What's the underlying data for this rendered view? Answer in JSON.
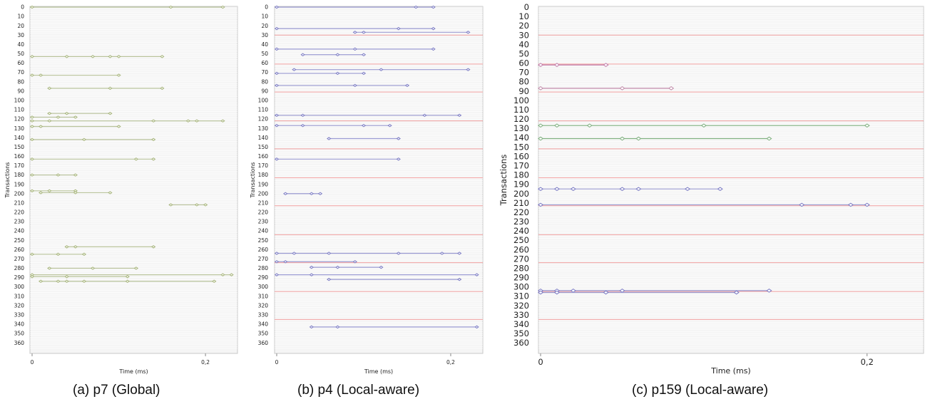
{
  "figure": {
    "captions": [
      {
        "letter": "(a)",
        "name": "p7 (Global)"
      },
      {
        "letter": "(b)",
        "name": "p4 (Local-aware)"
      },
      {
        "letter": "(c)",
        "name": "p159 (Local-aware)"
      }
    ]
  },
  "chart_data": [
    {
      "type": "scatter",
      "subtype": "transaction-timeline",
      "title": "",
      "xlabel": "Time (ms)",
      "ylabel": "Transactions",
      "xlim": [
        0,
        0.232
      ],
      "ylim": [
        0,
        366
      ],
      "x_ticks": [
        0,
        0.2
      ],
      "x_tick_labels": [
        "0",
        "0,2"
      ],
      "y_ticks": [
        0,
        10,
        20,
        30,
        40,
        50,
        60,
        70,
        80,
        90,
        100,
        110,
        120,
        130,
        140,
        150,
        160,
        170,
        180,
        190,
        200,
        210,
        220,
        230,
        240,
        250,
        260,
        270,
        280,
        290,
        300,
        310,
        320,
        330,
        340,
        350,
        360
      ],
      "grid": true,
      "boundaries": [],
      "line_color": "#b9c39b",
      "marker_color": "#a6b47a",
      "boundary_color": "#f2a0a0",
      "transactions": [
        {
          "y": 0,
          "x": [
            0,
            0.16,
            0.22
          ]
        },
        {
          "y": 53,
          "x": [
            0,
            0.04,
            0.07,
            0.09,
            0.1,
            0.15
          ]
        },
        {
          "y": 73,
          "x": [
            0,
            0.01,
            0.1
          ]
        },
        {
          "y": 87,
          "x": [
            0.02,
            0.09,
            0.15
          ]
        },
        {
          "y": 114,
          "x": [
            0.02,
            0.04,
            0.09
          ]
        },
        {
          "y": 118,
          "x": [
            0,
            0.03,
            0.05
          ]
        },
        {
          "y": 122,
          "x": [
            0,
            0.02,
            0.14,
            0.18,
            0.19,
            0.22
          ]
        },
        {
          "y": 128,
          "x": [
            0,
            0.01,
            0.1
          ]
        },
        {
          "y": 142,
          "x": [
            0,
            0.06,
            0.14
          ]
        },
        {
          "y": 163,
          "x": [
            0,
            0.12,
            0.14
          ]
        },
        {
          "y": 180,
          "x": [
            0,
            0.03,
            0.05
          ]
        },
        {
          "y": 197,
          "x": [
            0,
            0.02,
            0.05
          ]
        },
        {
          "y": 199,
          "x": [
            0.01,
            0.05,
            0.09
          ]
        },
        {
          "y": 212,
          "x": [
            0.16,
            0.19,
            0.2
          ]
        },
        {
          "y": 257,
          "x": [
            0.04,
            0.05,
            0.14
          ]
        },
        {
          "y": 265,
          "x": [
            0,
            0.03,
            0.06
          ]
        },
        {
          "y": 280,
          "x": [
            0.02,
            0.07,
            0.12
          ]
        },
        {
          "y": 287,
          "x": [
            0,
            0.22,
            0.23
          ]
        },
        {
          "y": 289,
          "x": [
            0,
            0.04,
            0.11
          ]
        },
        {
          "y": 294,
          "x": [
            0.01,
            0.03,
            0.04,
            0.06,
            0.11,
            0.21
          ]
        }
      ]
    },
    {
      "type": "scatter",
      "subtype": "transaction-timeline",
      "title": "",
      "xlabel": "Time (ms)",
      "ylabel": "Transactions",
      "xlim": [
        0,
        0.232
      ],
      "ylim": [
        0,
        366
      ],
      "x_ticks": [
        0,
        0.2
      ],
      "x_tick_labels": [
        "0",
        "0,2"
      ],
      "y_ticks": [
        0,
        10,
        20,
        30,
        40,
        50,
        60,
        70,
        80,
        90,
        100,
        110,
        120,
        130,
        140,
        150,
        160,
        170,
        180,
        190,
        200,
        210,
        220,
        230,
        240,
        250,
        260,
        270,
        280,
        290,
        300,
        310,
        320,
        330,
        340,
        350,
        360
      ],
      "grid": true,
      "boundaries": [
        30,
        61,
        91,
        122,
        152,
        183,
        213,
        244,
        274,
        305,
        335
      ],
      "line_color": "#9a9ad2",
      "marker_color": "#7b7bc4",
      "boundary_color": "#f2a0a0",
      "transactions": [
        {
          "y": 0,
          "x": [
            0,
            0.16,
            0.18
          ]
        },
        {
          "y": 23,
          "x": [
            0,
            0.14,
            0.18
          ]
        },
        {
          "y": 27,
          "x": [
            0.09,
            0.1,
            0.22
          ]
        },
        {
          "y": 45,
          "x": [
            0,
            0.09,
            0.18
          ]
        },
        {
          "y": 51,
          "x": [
            0.03,
            0.07,
            0.1
          ]
        },
        {
          "y": 67,
          "x": [
            0.02,
            0.12,
            0.22
          ]
        },
        {
          "y": 71,
          "x": [
            0,
            0.07,
            0.1
          ]
        },
        {
          "y": 84,
          "x": [
            0,
            0.09,
            0.15
          ]
        },
        {
          "y": 116,
          "x": [
            0,
            0.03,
            0.17,
            0.21
          ]
        },
        {
          "y": 127,
          "x": [
            0,
            0.03,
            0.1,
            0.13
          ]
        },
        {
          "y": 141,
          "x": [
            0.06,
            0.14
          ]
        },
        {
          "y": 163,
          "x": [
            0,
            0.14
          ]
        },
        {
          "y": 200,
          "x": [
            0.01,
            0.04,
            0.05
          ]
        },
        {
          "y": 264,
          "x": [
            0,
            0.02,
            0.06,
            0.14,
            0.19,
            0.21
          ]
        },
        {
          "y": 273,
          "x": [
            0,
            0.01,
            0.09
          ]
        },
        {
          "y": 279,
          "x": [
            0.04,
            0.07,
            0.12
          ]
        },
        {
          "y": 287,
          "x": [
            0,
            0.04,
            0.23
          ]
        },
        {
          "y": 292,
          "x": [
            0.06,
            0.21
          ]
        },
        {
          "y": 343,
          "x": [
            0.04,
            0.07,
            0.23
          ]
        }
      ]
    },
    {
      "type": "scatter",
      "subtype": "transaction-timeline",
      "title": "",
      "xlabel": "Time (ms)",
      "ylabel": "Transactions",
      "xlim": [
        0,
        0.232
      ],
      "ylim": [
        0,
        366
      ],
      "x_ticks": [
        0,
        0.2
      ],
      "x_tick_labels": [
        "0",
        "0,2"
      ],
      "y_ticks": [
        0,
        10,
        20,
        30,
        40,
        50,
        60,
        70,
        80,
        90,
        100,
        110,
        120,
        130,
        140,
        150,
        160,
        170,
        180,
        190,
        200,
        210,
        220,
        230,
        240,
        250,
        260,
        270,
        280,
        290,
        300,
        310,
        320,
        330,
        340,
        350,
        360
      ],
      "grid": true,
      "boundaries": [
        30,
        61,
        91,
        122,
        152,
        183,
        213,
        244,
        274,
        305,
        335
      ],
      "line_color": "#9a9ad2",
      "marker_color": "#7b7bc4",
      "boundary_color": "#f2a0a0",
      "transactions": [
        {
          "y": 62,
          "x": [
            0,
            0.01,
            0.04
          ],
          "color": "#c07aa8"
        },
        {
          "y": 87,
          "x": [
            0,
            0.05,
            0.08
          ],
          "color": "#c08aa8"
        },
        {
          "y": 127,
          "x": [
            0,
            0.01,
            0.03,
            0.1,
            0.2
          ],
          "color": "#7fb07f"
        },
        {
          "y": 141,
          "x": [
            0,
            0.05,
            0.06,
            0.14
          ],
          "color": "#7fb07f"
        },
        {
          "y": 195,
          "x": [
            0,
            0.01,
            0.02,
            0.05,
            0.06,
            0.09,
            0.11
          ]
        },
        {
          "y": 212,
          "x": [
            0,
            0.16,
            0.19,
            0.2
          ]
        },
        {
          "y": 304,
          "x": [
            0,
            0.01,
            0.02,
            0.05,
            0.14
          ]
        },
        {
          "y": 306,
          "x": [
            0,
            0.01,
            0.04,
            0.12
          ]
        }
      ]
    }
  ]
}
